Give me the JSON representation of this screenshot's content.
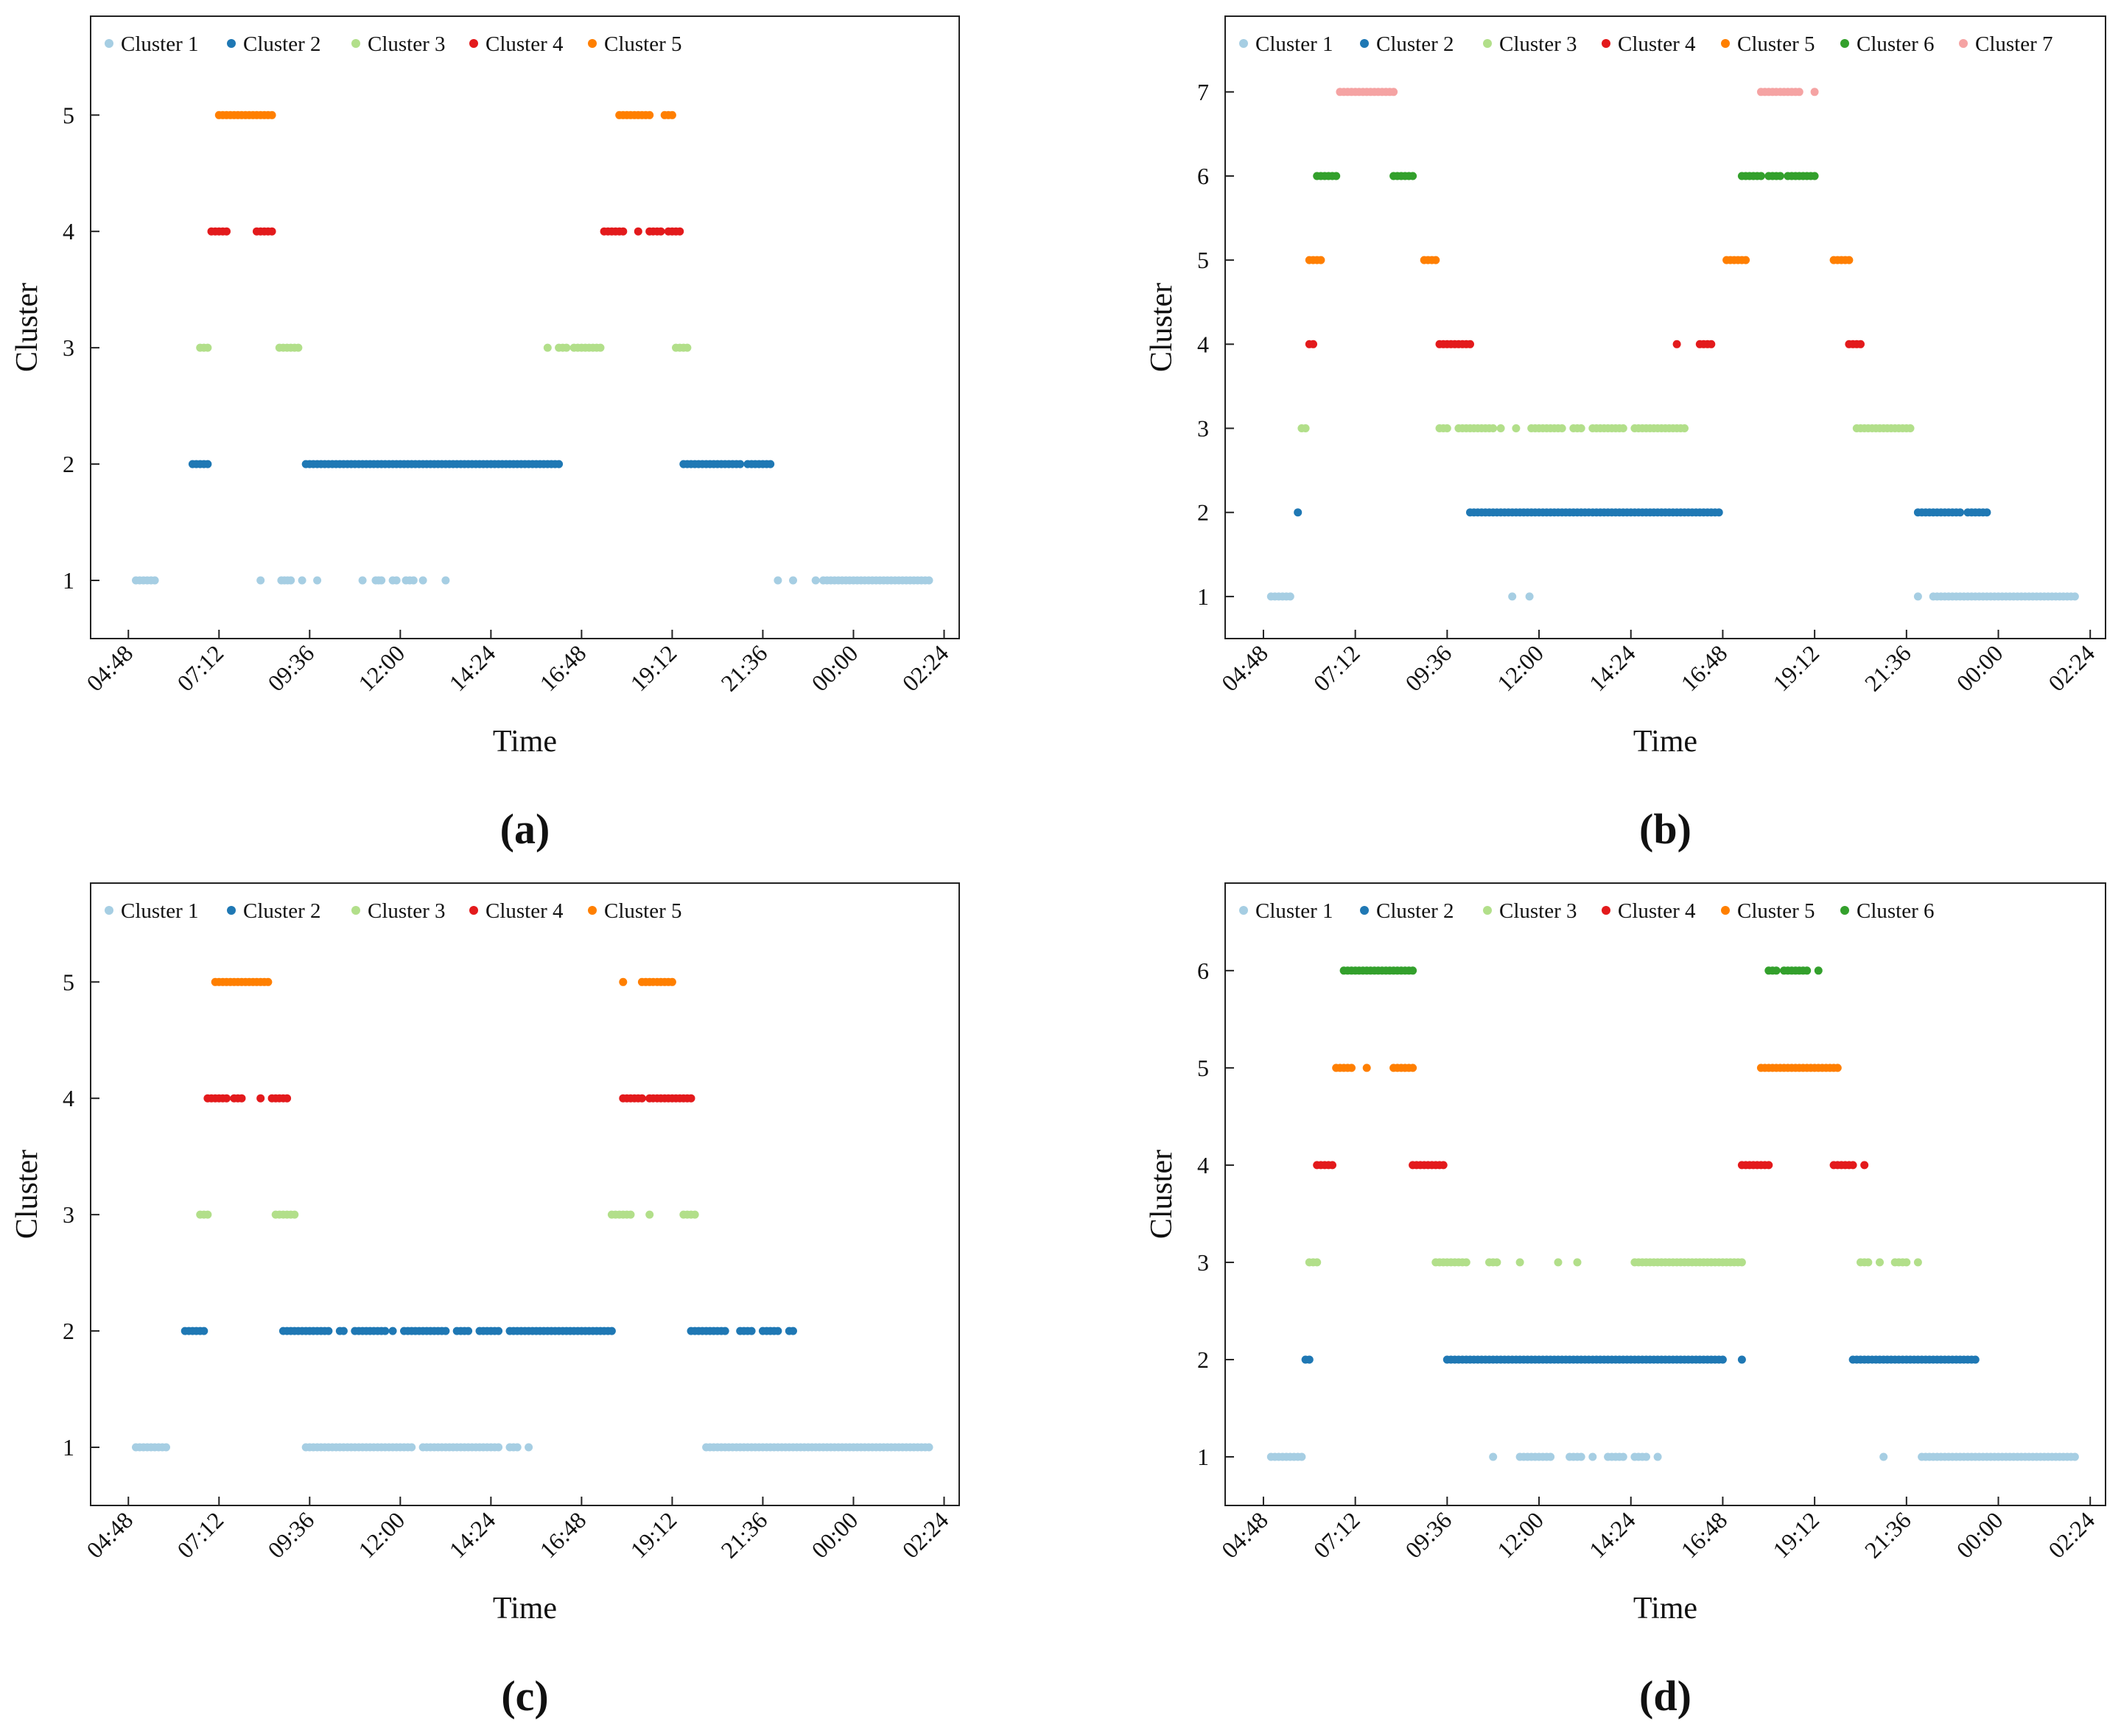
{
  "palette": [
    "#a6cee3",
    "#1f78b4",
    "#b2df8a",
    "#e31a1c",
    "#ff7f00",
    "#33a02c",
    "#f5a3a3"
  ],
  "chart_data": [
    {
      "panel": "(a)",
      "type": "scatter",
      "xlabel": "Time",
      "ylabel": "Cluster",
      "x_ticks": [
        "04:48",
        "07:12",
        "09:36",
        "12:00",
        "14:24",
        "16:48",
        "19:12",
        "21:36",
        "00:00",
        "02:24"
      ],
      "xlim_hours": [
        3.8,
        26.8
      ],
      "y_ticks": [
        "1",
        "2",
        "3",
        "4",
        "5"
      ],
      "ylim": [
        0.5,
        5.85
      ],
      "legend": [
        "Cluster 1",
        "Cluster 2",
        "Cluster 3",
        "Cluster 4",
        "Cluster 5"
      ],
      "series": [
        {
          "name": "Cluster 1",
          "y": 1,
          "runs": [
            [
              5.0,
              5.5
            ],
            [
              8.3,
              8.3
            ],
            [
              8.85,
              9.1
            ],
            [
              9.4,
              9.4
            ],
            [
              9.8,
              9.8
            ],
            [
              11.0,
              11.0
            ],
            [
              11.35,
              11.5
            ],
            [
              11.8,
              11.9
            ],
            [
              12.15,
              12.35
            ],
            [
              12.6,
              12.6
            ],
            [
              13.2,
              13.2
            ],
            [
              22.0,
              22.0
            ],
            [
              22.4,
              22.4
            ],
            [
              23.0,
              23.0
            ],
            [
              23.2,
              26.0
            ]
          ]
        },
        {
          "name": "Cluster 2",
          "y": 2,
          "runs": [
            [
              6.5,
              6.9
            ],
            [
              9.5,
              16.2
            ],
            [
              19.5,
              21.0
            ],
            [
              21.2,
              21.8
            ]
          ]
        },
        {
          "name": "Cluster 3",
          "y": 3,
          "runs": [
            [
              6.7,
              6.9
            ],
            [
              8.8,
              9.3
            ],
            [
              15.9,
              15.9
            ],
            [
              16.2,
              16.4
            ],
            [
              16.6,
              17.3
            ],
            [
              19.3,
              19.6
            ]
          ]
        },
        {
          "name": "Cluster 4",
          "y": 4,
          "runs": [
            [
              7.0,
              7.4
            ],
            [
              8.2,
              8.6
            ],
            [
              17.4,
              17.9
            ],
            [
              18.3,
              18.3
            ],
            [
              18.6,
              18.9
            ],
            [
              19.1,
              19.4
            ]
          ]
        },
        {
          "name": "Cluster 5",
          "y": 5,
          "runs": [
            [
              7.2,
              8.6
            ],
            [
              17.8,
              18.6
            ],
            [
              19.0,
              19.2
            ]
          ]
        }
      ]
    },
    {
      "panel": "(b)",
      "type": "scatter",
      "xlabel": "Time",
      "ylabel": "Cluster",
      "x_ticks": [
        "04:48",
        "07:12",
        "09:36",
        "12:00",
        "14:24",
        "16:48",
        "19:12",
        "21:36",
        "00:00",
        "02:24"
      ],
      "xlim_hours": [
        3.8,
        26.8
      ],
      "y_ticks": [
        "1",
        "2",
        "3",
        "4",
        "5",
        "6",
        "7"
      ],
      "ylim": [
        0.5,
        7.9
      ],
      "legend": [
        "Cluster 1",
        "Cluster 2",
        "Cluster 3",
        "Cluster 4",
        "Cluster 5",
        "Cluster 6",
        "Cluster 7"
      ],
      "series": [
        {
          "name": "Cluster 1",
          "y": 1,
          "runs": [
            [
              5.0,
              5.5
            ],
            [
              11.3,
              11.3
            ],
            [
              11.75,
              11.75
            ],
            [
              21.9,
              21.9
            ],
            [
              22.3,
              22.4
            ],
            [
              22.5,
              26.0
            ]
          ]
        },
        {
          "name": "Cluster 2",
          "y": 2,
          "runs": [
            [
              5.7,
              5.7
            ],
            [
              10.2,
              16.7
            ],
            [
              21.9,
              23.0
            ],
            [
              23.2,
              23.7
            ]
          ]
        },
        {
          "name": "Cluster 3",
          "y": 3,
          "runs": [
            [
              5.8,
              5.9
            ],
            [
              9.4,
              9.6
            ],
            [
              9.9,
              10.8
            ],
            [
              11.0,
              11.0
            ],
            [
              11.4,
              11.4
            ],
            [
              11.8,
              12.6
            ],
            [
              12.9,
              13.1
            ],
            [
              13.4,
              14.2
            ],
            [
              14.5,
              15.8
            ],
            [
              20.3,
              21.7
            ]
          ]
        },
        {
          "name": "Cluster 4",
          "y": 4,
          "runs": [
            [
              6.0,
              6.1
            ],
            [
              9.4,
              10.2
            ],
            [
              15.6,
              15.6
            ],
            [
              16.2,
              16.5
            ],
            [
              20.1,
              20.4
            ]
          ]
        },
        {
          "name": "Cluster 5",
          "y": 5,
          "runs": [
            [
              6.0,
              6.3
            ],
            [
              9.0,
              9.3
            ],
            [
              16.9,
              17.4
            ],
            [
              19.7,
              20.1
            ]
          ]
        },
        {
          "name": "Cluster 6",
          "y": 6,
          "runs": [
            [
              6.2,
              6.7
            ],
            [
              8.2,
              8.7
            ],
            [
              17.3,
              17.8
            ],
            [
              18.0,
              18.3
            ],
            [
              18.5,
              19.2
            ]
          ]
        },
        {
          "name": "Cluster 7",
          "y": 7,
          "runs": [
            [
              6.8,
              8.2
            ],
            [
              17.8,
              18.8
            ],
            [
              19.2,
              19.2
            ]
          ]
        }
      ]
    },
    {
      "panel": "(c)",
      "type": "scatter",
      "xlabel": "Time",
      "ylabel": "Cluster",
      "x_ticks": [
        "04:48",
        "07:12",
        "09:36",
        "12:00",
        "14:24",
        "16:48",
        "19:12",
        "21:36",
        "00:00",
        "02:24"
      ],
      "xlim_hours": [
        3.8,
        26.8
      ],
      "y_ticks": [
        "1",
        "2",
        "3",
        "4",
        "5"
      ],
      "ylim": [
        0.5,
        5.85
      ],
      "legend": [
        "Cluster 1",
        "Cluster 2",
        "Cluster 3",
        "Cluster 4",
        "Cluster 5"
      ],
      "series": [
        {
          "name": "Cluster 1",
          "y": 1,
          "runs": [
            [
              5.0,
              5.8
            ],
            [
              9.5,
              12.3
            ],
            [
              12.6,
              14.6
            ],
            [
              14.9,
              15.1
            ],
            [
              15.4,
              15.4
            ],
            [
              20.1,
              26.0
            ]
          ]
        },
        {
          "name": "Cluster 2",
          "y": 2,
          "runs": [
            [
              6.3,
              6.8
            ],
            [
              8.9,
              10.1
            ],
            [
              10.4,
              10.5
            ],
            [
              10.8,
              11.6
            ],
            [
              11.8,
              11.8
            ],
            [
              12.1,
              13.2
            ],
            [
              13.5,
              13.8
            ],
            [
              14.1,
              14.6
            ],
            [
              14.9,
              17.6
            ],
            [
              19.7,
              20.6
            ],
            [
              21.0,
              21.3
            ],
            [
              21.6,
              22.0
            ],
            [
              22.3,
              22.4
            ]
          ]
        },
        {
          "name": "Cluster 3",
          "y": 3,
          "runs": [
            [
              6.7,
              6.9
            ],
            [
              8.7,
              9.2
            ],
            [
              17.6,
              18.1
            ],
            [
              18.6,
              18.6
            ],
            [
              19.5,
              19.8
            ]
          ]
        },
        {
          "name": "Cluster 4",
          "y": 4,
          "runs": [
            [
              6.9,
              7.4
            ],
            [
              7.6,
              7.8
            ],
            [
              8.3,
              8.3
            ],
            [
              8.6,
              9.0
            ],
            [
              17.9,
              18.4
            ],
            [
              18.6,
              19.7
            ]
          ]
        },
        {
          "name": "Cluster 5",
          "y": 5,
          "runs": [
            [
              7.1,
              8.5
            ],
            [
              17.9,
              17.9
            ],
            [
              18.4,
              19.2
            ]
          ]
        }
      ]
    },
    {
      "panel": "(d)",
      "type": "scatter",
      "xlabel": "Time",
      "ylabel": "Cluster",
      "x_ticks": [
        "04:48",
        "07:12",
        "09:36",
        "12:00",
        "14:24",
        "16:48",
        "19:12",
        "21:36",
        "00:00",
        "02:24"
      ],
      "xlim_hours": [
        3.8,
        26.8
      ],
      "y_ticks": [
        "1",
        "2",
        "3",
        "4",
        "5",
        "6"
      ],
      "ylim": [
        0.5,
        6.9
      ],
      "legend": [
        "Cluster 1",
        "Cluster 2",
        "Cluster 3",
        "Cluster 4",
        "Cluster 5",
        "Cluster 6"
      ],
      "series": [
        {
          "name": "Cluster 1",
          "y": 1,
          "runs": [
            [
              5.0,
              5.8
            ],
            [
              10.8,
              10.8
            ],
            [
              11.5,
              12.3
            ],
            [
              12.8,
              13.1
            ],
            [
              13.4,
              13.4
            ],
            [
              13.8,
              14.2
            ],
            [
              14.5,
              14.8
            ],
            [
              15.1,
              15.1
            ],
            [
              21.0,
              21.0
            ],
            [
              22.0,
              26.0
            ]
          ]
        },
        {
          "name": "Cluster 2",
          "y": 2,
          "runs": [
            [
              5.9,
              6.0
            ],
            [
              9.6,
              16.8
            ],
            [
              17.3,
              17.3
            ],
            [
              20.2,
              23.4
            ]
          ]
        },
        {
          "name": "Cluster 3",
          "y": 3,
          "runs": [
            [
              6.0,
              6.2
            ],
            [
              9.3,
              10.1
            ],
            [
              10.7,
              10.9
            ],
            [
              11.5,
              11.5
            ],
            [
              12.5,
              12.5
            ],
            [
              13.0,
              13.0
            ],
            [
              14.5,
              17.3
            ],
            [
              20.4,
              20.6
            ],
            [
              20.9,
              20.9
            ],
            [
              21.3,
              21.6
            ],
            [
              21.9,
              21.9
            ]
          ]
        },
        {
          "name": "Cluster 4",
          "y": 4,
          "runs": [
            [
              6.2,
              6.6
            ],
            [
              8.7,
              9.5
            ],
            [
              17.3,
              18.0
            ],
            [
              19.7,
              20.2
            ],
            [
              20.5,
              20.5
            ]
          ]
        },
        {
          "name": "Cluster 5",
          "y": 5,
          "runs": [
            [
              6.7,
              7.1
            ],
            [
              7.5,
              7.5
            ],
            [
              8.2,
              8.7
            ],
            [
              17.8,
              19.8
            ]
          ]
        },
        {
          "name": "Cluster 6",
          "y": 6,
          "runs": [
            [
              6.9,
              8.7
            ],
            [
              18.0,
              18.2
            ],
            [
              18.4,
              19.0
            ],
            [
              19.3,
              19.3
            ]
          ]
        }
      ]
    }
  ]
}
